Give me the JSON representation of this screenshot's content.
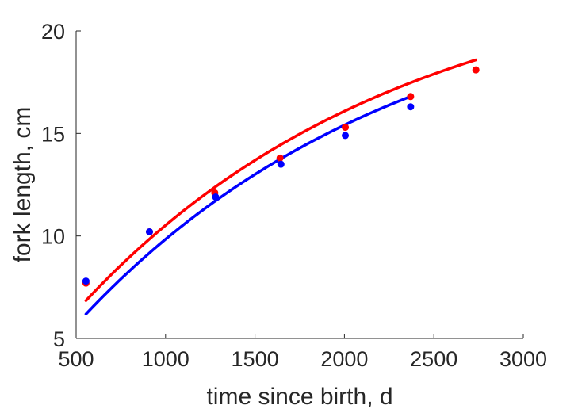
{
  "chart_data": {
    "type": "scatter",
    "xlabel": "time since birth, d",
    "ylabel": "fork length, cm",
    "xlim": [
      500,
      3000
    ],
    "ylim": [
      5,
      20
    ],
    "xticks": [
      500,
      1000,
      1500,
      2000,
      2500,
      3000
    ],
    "yticks": [
      5,
      10,
      15,
      20
    ],
    "xtick_labels": [
      "500",
      "1000",
      "1500",
      "2000",
      "2500",
      "3000"
    ],
    "ytick_labels": [
      "5",
      "10",
      "15",
      "20"
    ],
    "grid": false,
    "series": [
      {
        "color": "#ff0000",
        "points": [
          {
            "x": 555,
            "y": 7.7
          },
          {
            "x": 910,
            "y": 10.2
          },
          {
            "x": 1275,
            "y": 12.1
          },
          {
            "x": 1640,
            "y": 13.8
          },
          {
            "x": 2005,
            "y": 15.3
          },
          {
            "x": 2370,
            "y": 16.8
          },
          {
            "x": 2735,
            "y": 18.1
          }
        ],
        "fit": {
          "x0": 555,
          "x1": 2735,
          "Linf": 23.5,
          "k": 0.00056,
          "t0": -60
        }
      },
      {
        "color": "#0000ff",
        "points": [
          {
            "x": 555,
            "y": 7.8
          },
          {
            "x": 910,
            "y": 10.2
          },
          {
            "x": 1280,
            "y": 11.9
          },
          {
            "x": 1645,
            "y": 13.5
          },
          {
            "x": 2005,
            "y": 14.9
          },
          {
            "x": 2370,
            "y": 16.3
          }
        ],
        "fit": {
          "x0": 555,
          "x1": 2370,
          "Linf": 23.0,
          "k": 0.00055,
          "t0": -15
        }
      }
    ]
  }
}
